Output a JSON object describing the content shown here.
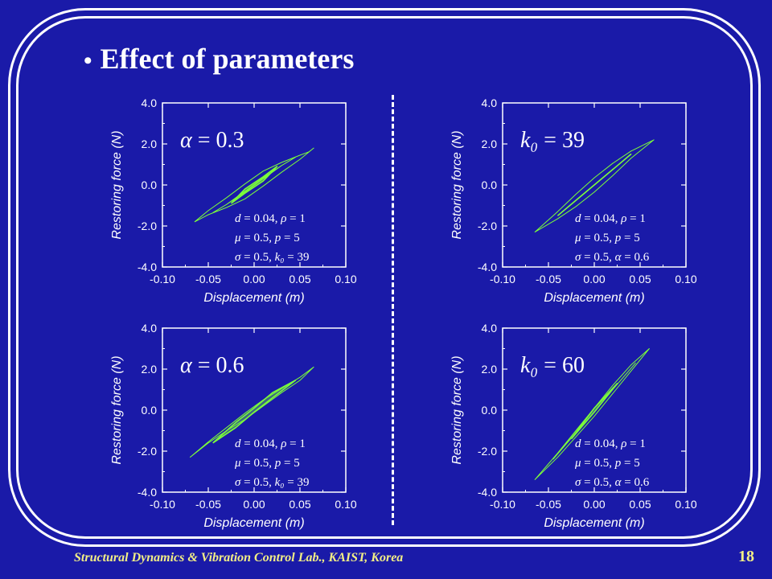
{
  "slide": {
    "bullet": "•",
    "title": "Effect of parameters",
    "footer": "Structural Dynamics & Vibration Control Lab., KAIST, Korea",
    "page_number": "18"
  },
  "colors": {
    "background": "#1a1aa8",
    "text": "#ffffff",
    "hysteresis": "#7CFF3A",
    "footer": "#f2ef86"
  },
  "chart_data": [
    {
      "type": "line",
      "xlabel": "Displacement (m)",
      "ylabel": "Restoring force (N)",
      "xlim": [
        -0.1,
        0.1
      ],
      "ylim": [
        -4.0,
        4.0
      ],
      "xticks": [
        "-0.10",
        "-0.05",
        "0.00",
        "0.05",
        "0.10"
      ],
      "yticks": [
        "4.0",
        "2.0",
        "0.0",
        "-2.0",
        "-4.0"
      ],
      "grid": false,
      "annotation": {
        "sym": "α",
        "eq": " = ",
        "val": "0.3"
      },
      "params": [
        {
          "s1": "d",
          "e1": " = 0.04, ",
          "s2": "ρ",
          "e2": " = 1"
        },
        {
          "s1": "μ",
          "e1": " = 0.5,   ",
          "s2": "p",
          "e2": " = 5"
        },
        {
          "s1": "σ",
          "e1": " = 0.5,   ",
          "s2": "k₀",
          "e2": " = 39"
        }
      ],
      "series": [
        {
          "x": [
            -0.065,
            -0.05,
            -0.03,
            -0.01,
            0.01,
            0.03,
            0.05,
            0.06,
            0.065,
            0.05,
            0.03,
            0.01,
            -0.01,
            -0.03,
            -0.05,
            -0.065
          ],
          "y": [
            -1.8,
            -1.25,
            -0.62,
            0.05,
            0.68,
            1.1,
            1.45,
            1.62,
            1.8,
            1.25,
            0.62,
            -0.05,
            -0.68,
            -1.1,
            -1.45,
            -1.8
          ]
        },
        {
          "x": [
            -0.045,
            -0.03,
            -0.01,
            0.01,
            0.03,
            0.045,
            0.03,
            0.01,
            -0.01,
            -0.03,
            -0.045
          ],
          "y": [
            -1.35,
            -0.95,
            -0.3,
            0.35,
            0.95,
            1.35,
            0.95,
            0.3,
            -0.35,
            -0.95,
            -1.35
          ]
        },
        {
          "x": [
            -0.025,
            -0.01,
            0.01,
            0.025,
            0.01,
            -0.01,
            -0.025
          ],
          "y": [
            -0.9,
            -0.4,
            0.2,
            0.9,
            0.4,
            -0.2,
            -0.9
          ]
        }
      ]
    },
    {
      "type": "line",
      "xlabel": "Displacement (m)",
      "ylabel": "Restoring force (N)",
      "xlim": [
        -0.1,
        0.1
      ],
      "ylim": [
        -4.0,
        4.0
      ],
      "xticks": [
        "-0.10",
        "-0.05",
        "0.00",
        "0.05",
        "0.10"
      ],
      "yticks": [
        "4.0",
        "2.0",
        "0.0",
        "-2.0",
        "-4.0"
      ],
      "grid": false,
      "annotation": {
        "sym": "k₀",
        "eq": " = ",
        "val": "39"
      },
      "params": [
        {
          "s1": "d",
          "e1": " = 0.04, ",
          "s2": "ρ",
          "e2": " = 1"
        },
        {
          "s1": "μ",
          "e1": " = 0.5,   ",
          "s2": "p",
          "e2": " = 5"
        },
        {
          "s1": "σ",
          "e1": " = 0.5,   ",
          "s2": "α",
          "e2": " = 0.6"
        }
      ],
      "series": [
        {
          "x": [
            -0.065,
            -0.04,
            -0.02,
            0.0,
            0.02,
            0.04,
            0.065,
            0.04,
            0.02,
            0.0,
            -0.02,
            -0.04,
            -0.065
          ],
          "y": [
            -2.3,
            -1.3,
            -0.45,
            0.35,
            1.05,
            1.65,
            2.2,
            1.3,
            0.45,
            -0.35,
            -1.05,
            -1.65,
            -2.3
          ]
        },
        {
          "x": [
            -0.04,
            -0.02,
            0.0,
            0.02,
            0.04,
            0.02,
            0.0,
            -0.02,
            -0.04
          ],
          "y": [
            -1.5,
            -0.75,
            0.0,
            0.75,
            1.5,
            0.75,
            0.0,
            -0.75,
            -1.5
          ]
        }
      ]
    },
    {
      "type": "line",
      "xlabel": "Displacement (m)",
      "ylabel": "Restoring force (N)",
      "xlim": [
        -0.1,
        0.1
      ],
      "ylim": [
        -4.0,
        4.0
      ],
      "xticks": [
        "-0.10",
        "-0.05",
        "0.00",
        "0.05",
        "0.10"
      ],
      "yticks": [
        "4.0",
        "2.0",
        "0.0",
        "-2.0",
        "-4.0"
      ],
      "grid": false,
      "annotation": {
        "sym": "α",
        "eq": " = ",
        "val": "0.6"
      },
      "params": [
        {
          "s1": "d",
          "e1": " = 0.04, ",
          "s2": "ρ",
          "e2": " = 1"
        },
        {
          "s1": "μ",
          "e1": " = 0.5,   ",
          "s2": "p",
          "e2": " = 5"
        },
        {
          "s1": "σ",
          "e1": " = 0.5,   ",
          "s2": "k₀",
          "e2": " = 39"
        }
      ],
      "series": [
        {
          "x": [
            -0.07,
            -0.05,
            -0.03,
            -0.01,
            0.01,
            0.03,
            0.05,
            0.065,
            0.05,
            0.03,
            0.01,
            -0.01,
            -0.03,
            -0.05,
            -0.07
          ],
          "y": [
            -2.3,
            -1.55,
            -0.85,
            -0.15,
            0.5,
            1.05,
            1.6,
            2.1,
            1.45,
            0.85,
            0.2,
            -0.45,
            -1.0,
            -1.6,
            -2.3
          ]
        },
        {
          "x": [
            -0.045,
            -0.02,
            0.0,
            0.02,
            0.045,
            0.02,
            0.0,
            -0.02,
            -0.045
          ],
          "y": [
            -1.6,
            -0.85,
            -0.1,
            0.6,
            1.45,
            0.85,
            0.1,
            -0.6,
            -1.6
          ]
        }
      ]
    },
    {
      "type": "line",
      "xlabel": "Displacement (m)",
      "ylabel": "Restoring force (N)",
      "xlim": [
        -0.1,
        0.1
      ],
      "ylim": [
        -4.0,
        4.0
      ],
      "xticks": [
        "-0.10",
        "-0.05",
        "0.00",
        "0.05",
        "0.10"
      ],
      "yticks": [
        "4.0",
        "2.0",
        "0.0",
        "-2.0",
        "-4.0"
      ],
      "grid": false,
      "annotation": {
        "sym": "k₀",
        "eq": " = ",
        "val": "60"
      },
      "params": [
        {
          "s1": "d",
          "e1": " = 0.04, ",
          "s2": "ρ",
          "e2": " = 1"
        },
        {
          "s1": "μ",
          "e1": " = 0.5,   ",
          "s2": "p",
          "e2": " = 5"
        },
        {
          "s1": "σ",
          "e1": " = 0.5,   ",
          "s2": "α",
          "e2": " = 0.6"
        }
      ],
      "series": [
        {
          "x": [
            -0.065,
            -0.04,
            -0.02,
            0.0,
            0.02,
            0.04,
            0.06,
            0.04,
            0.02,
            0.0,
            -0.02,
            -0.04,
            -0.065
          ],
          "y": [
            -3.4,
            -2.1,
            -1.0,
            0.1,
            1.2,
            2.2,
            3.0,
            1.9,
            0.8,
            -0.3,
            -1.3,
            -2.3,
            -3.4
          ]
        },
        {
          "x": [
            -0.045,
            -0.02,
            0.0,
            0.02,
            0.045,
            0.02,
            0.0,
            -0.02,
            -0.045
          ],
          "y": [
            -2.4,
            -1.1,
            -0.1,
            1.0,
            2.3,
            1.0,
            0.1,
            -1.0,
            -2.4
          ]
        },
        {
          "x": [
            -0.025,
            0.0,
            0.025,
            0.0,
            -0.025
          ],
          "y": [
            -1.4,
            -0.1,
            1.3,
            0.1,
            -1.4
          ]
        }
      ]
    }
  ]
}
